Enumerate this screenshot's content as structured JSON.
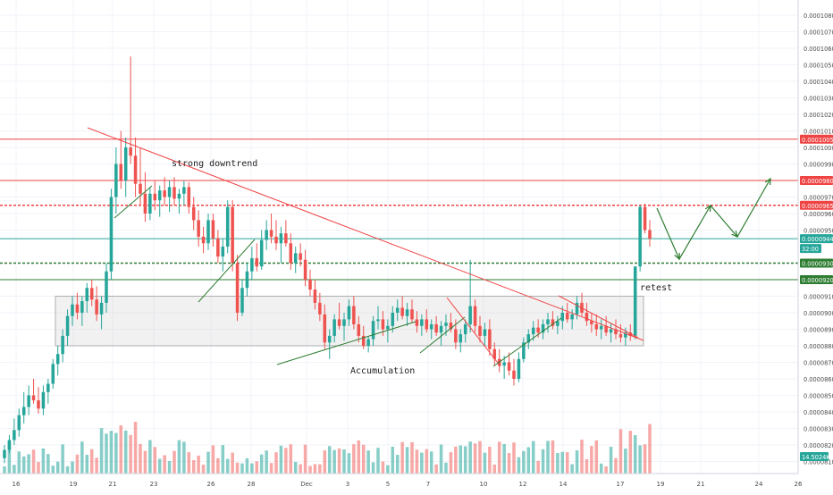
{
  "chart_data": {
    "type": "candlestick",
    "title": "",
    "xlabel": "",
    "ylabel": "",
    "x_tick_labels": [
      "16",
      "19",
      "21",
      "23",
      "26",
      "28",
      "Dec",
      "3",
      "5",
      "7",
      "10",
      "12",
      "14",
      "17",
      "19",
      "21",
      "24",
      "26"
    ],
    "y_ticks": [
      0.000108,
      0.000107,
      0.000106,
      0.000105,
      0.000104,
      0.000103,
      0.000102,
      0.000101,
      0.0001,
      9.9e-05,
      9.7e-05,
      9.6e-05,
      9.5e-05,
      9.1e-05,
      9e-05,
      8.9e-05,
      8.8e-05,
      8.7e-05,
      8.6e-05,
      8.5e-05,
      8.4e-05,
      8.3e-05,
      8.2e-05,
      8.1e-05
    ],
    "y_tick_labels": [
      "0.00010800",
      "0.00010700",
      "0.00010600",
      "0.00010500",
      "0.00010400",
      "0.00010300",
      "0.00010200",
      "0.00010100",
      "0.00010000",
      "0.00009900",
      "0.00009700",
      "0.00009600",
      "0.00009500",
      "0.00009100",
      "0.00009000",
      "0.00008900",
      "0.00008800",
      "0.00008700",
      "0.00008600",
      "0.00008500",
      "0.00008400",
      "0.00008300",
      "0.00008200",
      "0.00008100"
    ],
    "ylim": [
      8.05e-05,
      0.0001085
    ],
    "up_color": "#26a69a",
    "down_color": "#ef5350",
    "horizontal_levels": [
      {
        "label": "0.00010050",
        "value": 0.0001005,
        "color": "#ef4444",
        "style": "solid"
      },
      {
        "label": "0.00009800",
        "value": 9.8e-05,
        "color": "#ef4444",
        "style": "solid"
      },
      {
        "label": "0.00009650",
        "value": 9.65e-05,
        "color": "#ef4444",
        "style": "dashed"
      },
      {
        "label": "0.00009448",
        "value": 9.448e-05,
        "color": "#26a69a",
        "style": "solid"
      },
      {
        "label": "0.00009300",
        "value": 9.3e-05,
        "color": "#2e7d32",
        "style": "dashed"
      },
      {
        "label": "0.00009200",
        "value": 9.2e-05,
        "color": "#2e7d32",
        "style": "solid"
      }
    ],
    "countdown_label": "32:00",
    "volume_label": "14.5024K",
    "annotations": [
      "strong downtrend",
      "Accumulation",
      "retest"
    ],
    "accumulation_range": [
      8.8e-05,
      9.1e-05
    ],
    "volume_max": 60
  }
}
